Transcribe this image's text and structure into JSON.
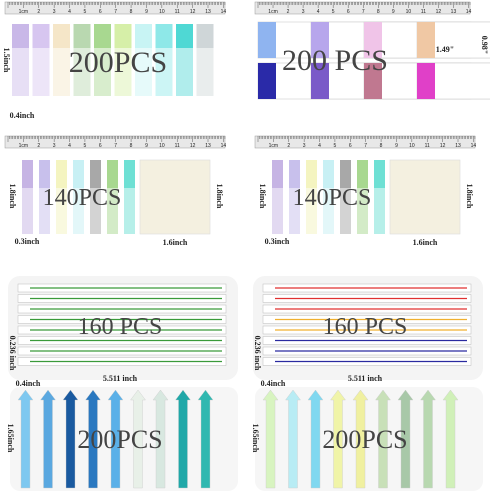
{
  "ruler_labels": [
    "1cm",
    "2",
    "3",
    "4",
    "5",
    "6",
    "7",
    "8",
    "9",
    "10",
    "11",
    "12",
    "13",
    "14"
  ],
  "panels": [
    {
      "title": "200PCS",
      "height_label": "1.5inch",
      "width_label": "0.4inch",
      "colors": [
        "#c9b8e8",
        "#d7c6f0",
        "#f5e6c8",
        "#b9d8b0",
        "#a8d890",
        "#d6efa8",
        "#c8f4f4",
        "#8ee8e8",
        "#4fd8d4",
        "#cfd6d8"
      ]
    },
    {
      "title": "200 PCS",
      "width_label": "1.49\"",
      "height_label": "0.98\"",
      "colors": [
        "#8fb4f0",
        "#b7a6ec",
        "#f0c4e8",
        "#f0c8a4",
        "#2a2aa8",
        "#7a5ac8",
        "#c07890",
        "#e040c8"
      ]
    },
    {
      "title": "140PCS",
      "height_label": "1.8inch",
      "width_label": "0.3inch",
      "big_height_label": "1.8inch",
      "big_width_label": "1.6inch",
      "colors": [
        "#c6b4e4",
        "#c8c0ec",
        "#f4f4c0",
        "#c8f0f4",
        "#a8a8a8",
        "#a8d890",
        "#6ee0d4"
      ]
    },
    {
      "title": "140PCS",
      "height_label": "1.8inch",
      "width_label": "0.3inch",
      "big_height_label": "1.8inch",
      "big_width_label": "1.6inch",
      "colors": [
        "#c6b4e4",
        "#c8c0ec",
        "#f4f4c0",
        "#c8f0f4",
        "#a8a8a8",
        "#a8d890",
        "#6ee0d4"
      ]
    },
    {
      "title": "160 PCS",
      "height_label": "0.236 inch",
      "width_label": "5.511 inch",
      "colors": [
        "#3a9a3a",
        "#3a9a3a",
        "#3a9a3a",
        "#3a9a3a",
        "#3a9a3a",
        "#3a9a3a",
        "#3a9a3a",
        "#3a9a3a"
      ]
    },
    {
      "title": "160 PCS",
      "height_label": "0.236 inch",
      "width_label": "5.511 inch",
      "colors": [
        "#e03030",
        "#e03030",
        "#e03030",
        "#f0b030",
        "#f0b030",
        "#2a2aa0",
        "#2a2aa0",
        "#2a2aa0"
      ]
    },
    {
      "title": "200PCS",
      "width_label": "0.4inch",
      "height_label": "1.65inch",
      "colors": [
        "#7ec8f0",
        "#5aa8e0",
        "#1a5aa0",
        "#2a78c0",
        "#5ab0e8",
        "#e8f0e8",
        "#d8e8e0",
        "#20a8a8",
        "#30b8b0"
      ]
    },
    {
      "title": "200PCS",
      "width_label": "0.4inch",
      "height_label": "1.65inch",
      "colors": [
        "#d8f4c0",
        "#b8ecf4",
        "#80d8f0",
        "#f0f4a8",
        "#f0f0a0",
        "#c8e0b8",
        "#a8c8a8",
        "#b8d8b0",
        "#d0f0b8"
      ]
    }
  ]
}
